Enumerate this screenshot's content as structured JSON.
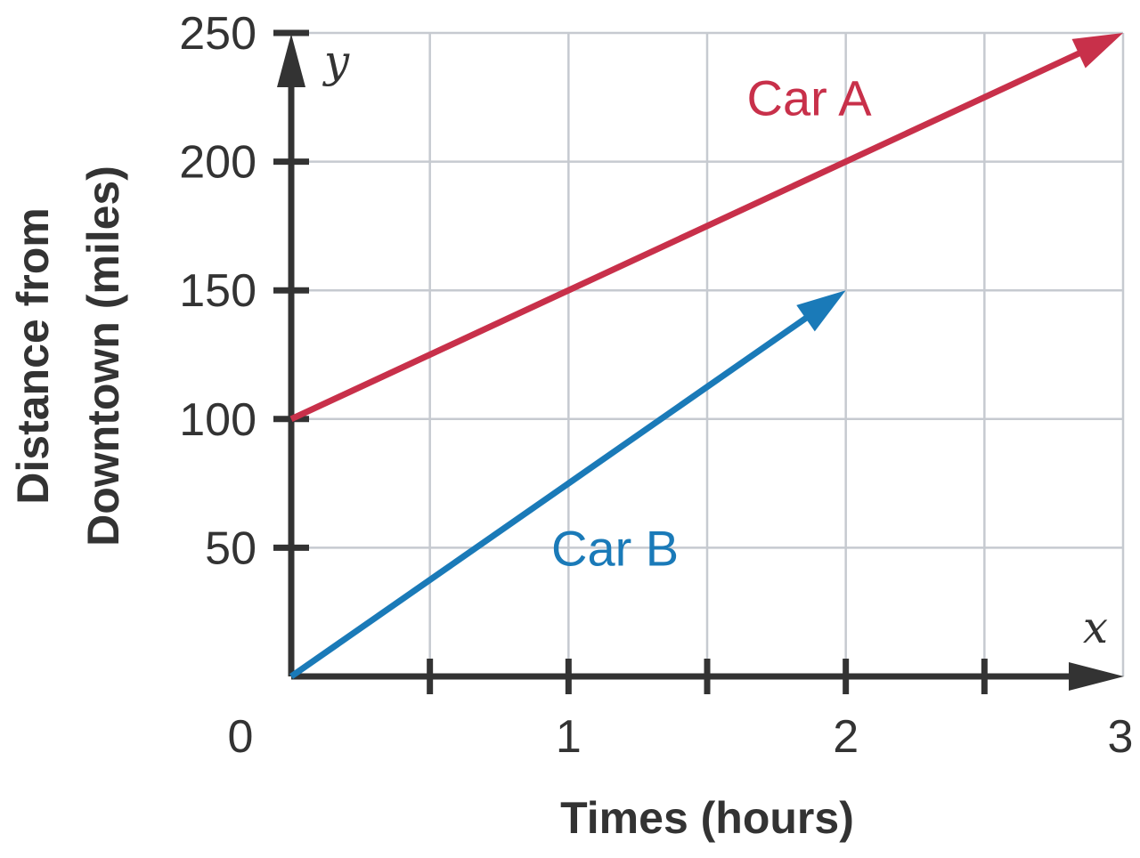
{
  "chart_data": {
    "type": "line",
    "xlabel": "Times (hours)",
    "ylabel_line1": "Distance from",
    "ylabel_line2": "Downtown (miles)",
    "x_axis_var": "x",
    "y_axis_var": "y",
    "xlim": [
      0,
      3
    ],
    "ylim": [
      0,
      250
    ],
    "x_ticks": [
      0,
      0.5,
      1,
      1.5,
      2,
      2.5,
      3
    ],
    "x_tick_labels": [
      {
        "value": 0,
        "label": "0"
      },
      {
        "value": 1,
        "label": "1"
      },
      {
        "value": 2,
        "label": "2"
      },
      {
        "value": 3,
        "label": "3"
      }
    ],
    "y_tick_labels": [
      {
        "value": 50,
        "label": "50"
      },
      {
        "value": 100,
        "label": "100"
      },
      {
        "value": 150,
        "label": "150"
      },
      {
        "value": 200,
        "label": "200"
      },
      {
        "value": 250,
        "label": "250"
      }
    ],
    "grid": true,
    "series": [
      {
        "name": "Car A",
        "color": "#c8304a",
        "points": [
          [
            0,
            100
          ],
          [
            3,
            250
          ]
        ]
      },
      {
        "name": "Car B",
        "color": "#1a7ab8",
        "points": [
          [
            0,
            0
          ],
          [
            2,
            150
          ]
        ]
      }
    ],
    "series_label_positions": [
      {
        "series": "Car A",
        "x": 1.9,
        "y": 225
      },
      {
        "series": "Car B",
        "x": 1.2,
        "y": 50
      }
    ]
  }
}
